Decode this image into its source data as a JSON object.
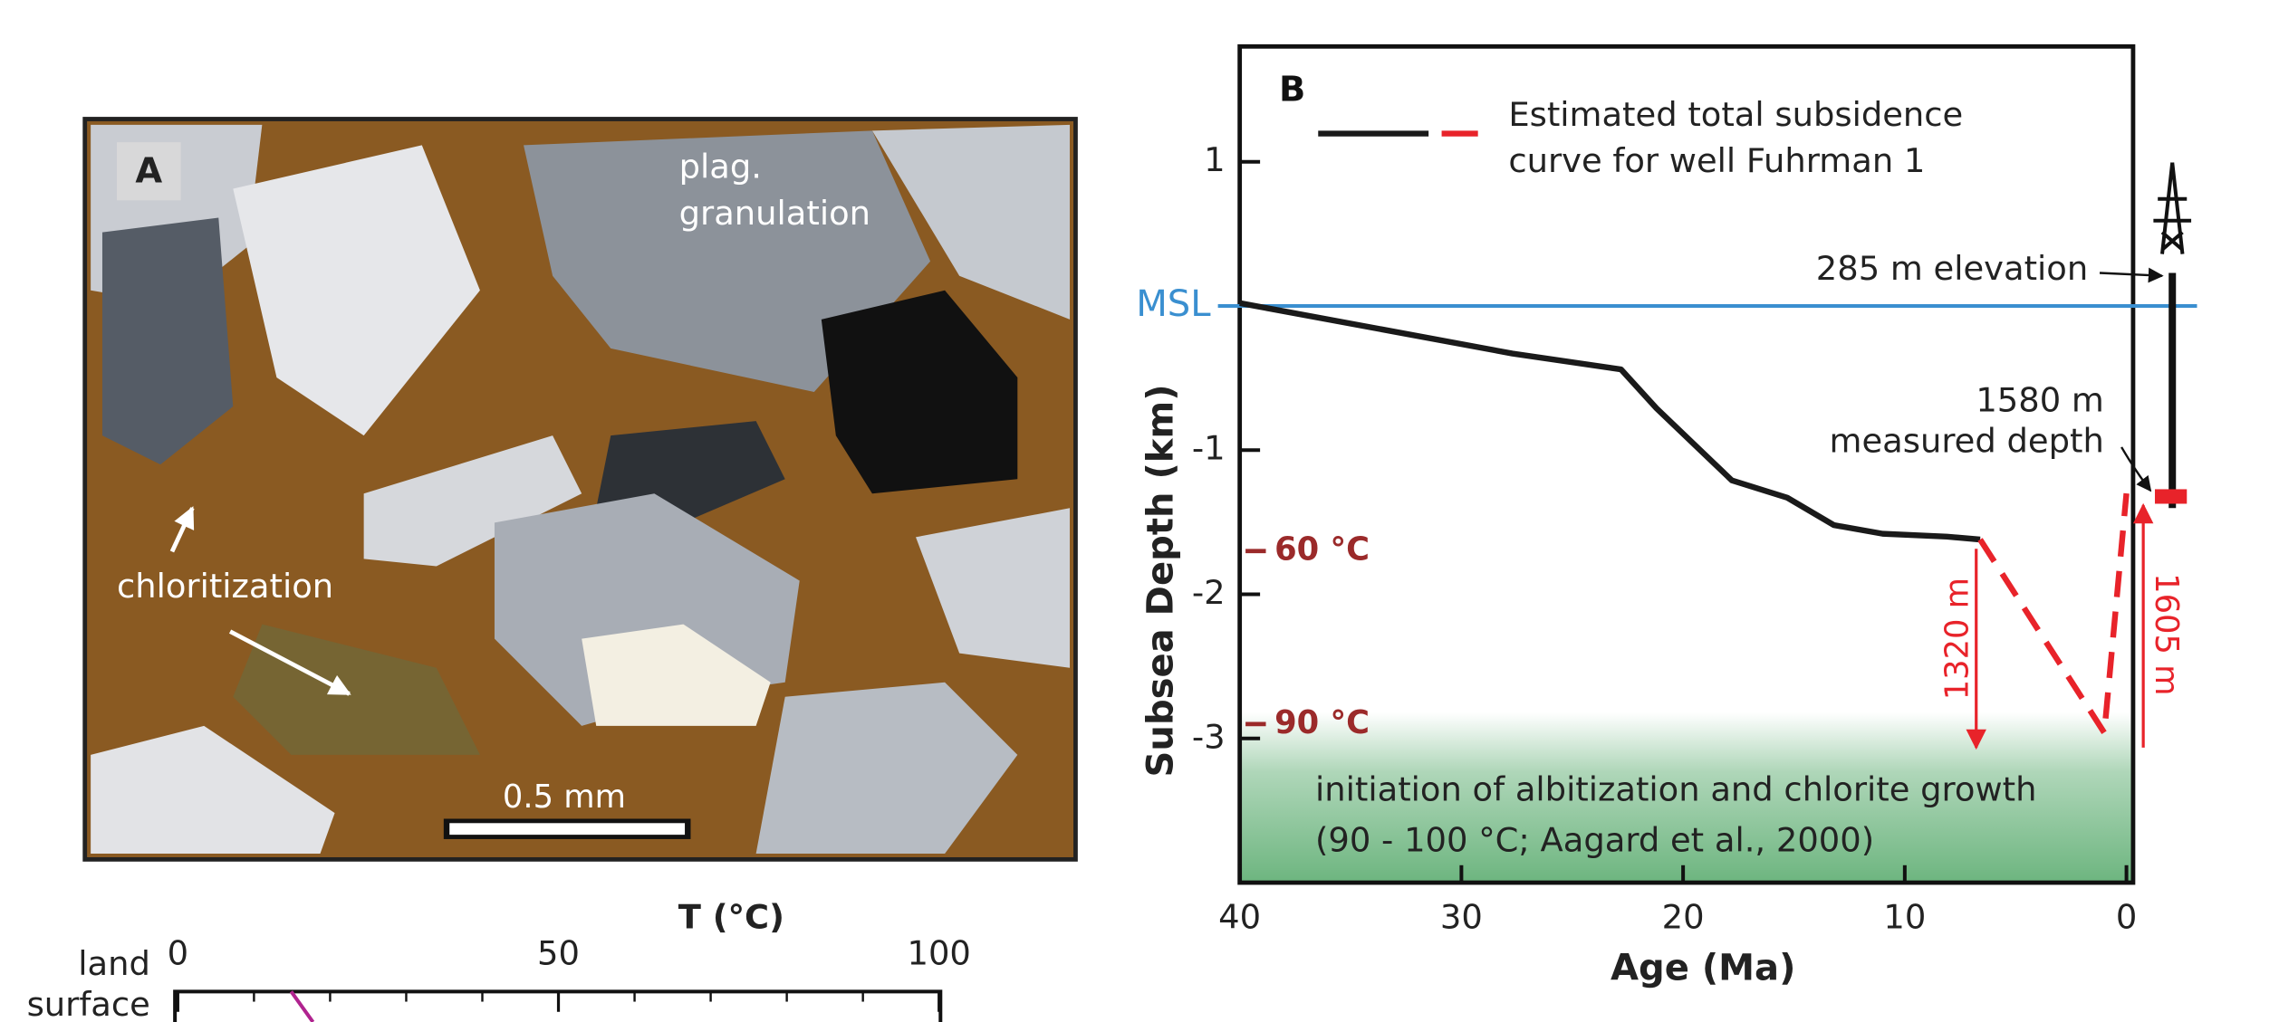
{
  "photo": {
    "panel_label": "A",
    "labels": [
      [
        "plag.",
        "granulation"
      ],
      [
        "chloritization"
      ]
    ],
    "scale_bar": "0.5 mm"
  },
  "chart_data": [
    {
      "type": "line",
      "panel_label": "B",
      "y_label": "Subsea Depth (km)",
      "x_label": "Age  (Ma)",
      "xlim": [
        40,
        -0.3
      ],
      "ylim": [
        -4,
        1.8
      ],
      "xticks": [
        40,
        30,
        20,
        10,
        0
      ],
      "yticks": [
        1,
        -1,
        -2,
        -3
      ],
      "legend_label": [
        "Estimated  total subsidence",
        "curve for well Fuhrman 1"
      ],
      "series": [
        {
          "color": "#1a1a1a",
          "dash": false,
          "x": [
            40,
            27.7,
            22.8,
            21.2,
            17.8,
            15.3,
            13.2,
            11.0,
            8.1,
            6.6
          ],
          "values": [
            0.02,
            -0.33,
            -0.44,
            -0.71,
            -1.21,
            -1.33,
            -1.52,
            -1.58,
            -1.6,
            -1.62
          ]
        },
        {
          "color": "#e8232a",
          "dash": true,
          "x": [
            6.6,
            1.0,
            0
          ],
          "values": [
            -1.62,
            -2.96,
            -1.3
          ]
        }
      ],
      "reference_lines": [
        {
          "value": 0,
          "label": "MSL",
          "color": "#3a8fd0"
        },
        {
          "value": -1.7,
          "label": "60 °C",
          "color": "#9b2a2a"
        },
        {
          "value": -2.9,
          "label": "90 °C",
          "color": "#9b2a2a"
        }
      ],
      "band": {
        "from": -2.9,
        "to": -4,
        "color": "#6db57f",
        "label": [
          "initiation of albitization and chlorite growth",
          "(90 - 100 °C; Aagard et al., 2000)"
        ]
      },
      "annotations": {
        "elevation": "285 m elevation",
        "measured": [
          "1580 m",
          "measured depth"
        ],
        "gap1": "1320 m",
        "gap2": "1605 m"
      }
    },
    {
      "type": "line",
      "x_label": "T (°C)",
      "y_label": [
        "land",
        "surface"
      ],
      "xlim": [
        0,
        100
      ],
      "xticks": [
        0,
        50,
        100
      ],
      "minor_xticks": [
        10,
        20,
        30,
        40,
        60,
        70,
        80,
        90
      ],
      "line_color": "#b0238f"
    }
  ]
}
